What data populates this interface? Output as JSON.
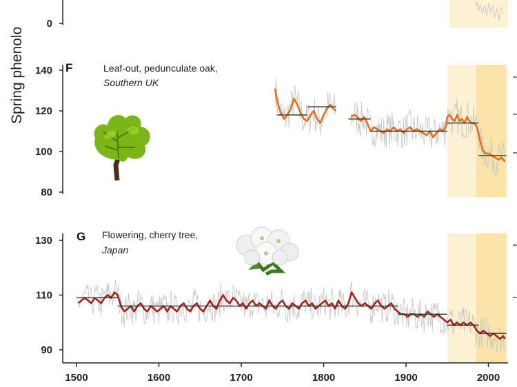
{
  "chart_data": [
    {
      "panel": "F",
      "type": "line",
      "annotation": "Leaf-out, pedunculate oak,",
      "annotation_italic": "Southern UK",
      "y_label_partial": "Spring phenolo",
      "yticks": [
        80,
        100,
        120,
        140
      ],
      "ylim": [
        78,
        144
      ],
      "xlim": [
        1490,
        2022
      ],
      "shaded_periods": [
        [
          1950,
          1985
        ],
        [
          1985,
          2022
        ]
      ],
      "series": [
        {
          "points": [
            [
              1741,
              131
            ],
            [
              1744,
              124
            ],
            [
              1748,
              119
            ],
            [
              1752,
              116
            ],
            [
              1756,
              118
            ],
            [
              1760,
              121
            ],
            [
              1764,
              126
            ],
            [
              1768,
              123
            ],
            [
              1772,
              119
            ],
            [
              1776,
              116
            ],
            [
              1780,
              115
            ],
            [
              1784,
              118
            ],
            [
              1788,
              120
            ],
            [
              1792,
              116
            ],
            [
              1796,
              114
            ],
            [
              1800,
              118
            ],
            [
              1804,
              121
            ],
            [
              1808,
              123
            ],
            [
              1812,
              121
            ],
            [
              1815,
              120
            ]
          ],
          "segments": [
            [
              1743,
              1780,
              118
            ],
            [
              1780,
              1815,
              122
            ]
          ]
        },
        {
          "points": [
            [
              1833,
              117
            ],
            [
              1837,
              118
            ],
            [
              1841,
              117
            ],
            [
              1845,
              115
            ],
            [
              1849,
              117
            ],
            [
              1853,
              114
            ],
            [
              1857,
              110
            ],
            [
              1861,
              112
            ],
            [
              1865,
              111
            ],
            [
              1869,
              110
            ],
            [
              1873,
              109
            ],
            [
              1877,
              111
            ],
            [
              1881,
              110
            ],
            [
              1885,
              112
            ],
            [
              1889,
              110
            ],
            [
              1893,
              111
            ],
            [
              1897,
              109
            ],
            [
              1901,
              111
            ],
            [
              1905,
              112
            ],
            [
              1909,
              110
            ],
            [
              1913,
              111
            ],
            [
              1917,
              110
            ],
            [
              1921,
              109
            ],
            [
              1925,
              108
            ],
            [
              1929,
              110
            ],
            [
              1933,
              107
            ],
            [
              1937,
              109
            ],
            [
              1941,
              111
            ],
            [
              1945,
              110
            ],
            [
              1948,
              112
            ],
            [
              1950,
              117
            ],
            [
              1953,
              118
            ],
            [
              1956,
              116
            ],
            [
              1959,
              115
            ],
            [
              1962,
              118
            ],
            [
              1965,
              115
            ],
            [
              1968,
              116
            ],
            [
              1971,
              114
            ],
            [
              1974,
              117
            ],
            [
              1977,
              115
            ],
            [
              1980,
              114
            ],
            [
              1983,
              114
            ],
            [
              1986,
              112
            ],
            [
              1988,
              109
            ],
            [
              1990,
              105
            ],
            [
              1993,
              101
            ],
            [
              1996,
              99
            ],
            [
              2000,
              99
            ],
            [
              2004,
              98
            ],
            [
              2008,
              97
            ],
            [
              2012,
              96
            ],
            [
              2016,
              97
            ],
            [
              2020,
              95
            ]
          ],
          "segments": [
            [
              1830,
              1857,
              116
            ],
            [
              1857,
              1950,
              110
            ],
            [
              1950,
              1988,
              114
            ],
            [
              1988,
              2022,
              98
            ]
          ]
        }
      ]
    },
    {
      "panel": "G",
      "type": "line",
      "annotation": "Flowering, cherry tree,",
      "annotation_italic": "Japan",
      "yticks": [
        90,
        110,
        130
      ],
      "ylim": [
        85,
        133
      ],
      "xticks": [
        1500,
        1600,
        1700,
        1800,
        1900,
        2000
      ],
      "xlim": [
        1490,
        2022
      ],
      "shaded_periods": [
        [
          1950,
          1985
        ],
        [
          1985,
          2022
        ]
      ],
      "series": [
        {
          "points": [
            [
              1502,
              107
            ],
            [
              1506,
              108
            ],
            [
              1510,
              109
            ],
            [
              1514,
              108
            ],
            [
              1518,
              107
            ],
            [
              1522,
              109
            ],
            [
              1526,
              108
            ],
            [
              1530,
              107
            ],
            [
              1534,
              109
            ],
            [
              1538,
              110
            ],
            [
              1542,
              109
            ],
            [
              1546,
              111
            ],
            [
              1550,
              110
            ],
            [
              1554,
              106
            ],
            [
              1558,
              104
            ],
            [
              1562,
              105
            ],
            [
              1566,
              106
            ],
            [
              1570,
              104
            ],
            [
              1574,
              106
            ],
            [
              1578,
              107
            ],
            [
              1582,
              105
            ],
            [
              1586,
              104
            ],
            [
              1590,
              106
            ],
            [
              1594,
              105
            ],
            [
              1598,
              104
            ],
            [
              1602,
              105
            ],
            [
              1606,
              106
            ],
            [
              1610,
              104
            ],
            [
              1614,
              106
            ],
            [
              1618,
              105
            ],
            [
              1622,
              104
            ],
            [
              1626,
              106
            ],
            [
              1630,
              107
            ],
            [
              1634,
              105
            ],
            [
              1638,
              104
            ],
            [
              1642,
              106
            ],
            [
              1646,
              107
            ],
            [
              1650,
              105
            ],
            [
              1654,
              104
            ],
            [
              1658,
              106
            ],
            [
              1662,
              108
            ],
            [
              1666,
              106
            ],
            [
              1670,
              105
            ],
            [
              1674,
              108
            ],
            [
              1678,
              110
            ],
            [
              1682,
              108
            ],
            [
              1686,
              107
            ],
            [
              1690,
              109
            ],
            [
              1694,
              108
            ],
            [
              1698,
              106
            ],
            [
              1702,
              107
            ],
            [
              1706,
              105
            ],
            [
              1710,
              107
            ],
            [
              1714,
              108
            ],
            [
              1718,
              106
            ],
            [
              1722,
              107
            ],
            [
              1726,
              106
            ],
            [
              1730,
              105
            ],
            [
              1734,
              108
            ],
            [
              1738,
              106
            ],
            [
              1742,
              105
            ],
            [
              1746,
              107
            ],
            [
              1750,
              108
            ],
            [
              1754,
              106
            ],
            [
              1758,
              105
            ],
            [
              1762,
              107
            ],
            [
              1766,
              106
            ],
            [
              1770,
              105
            ],
            [
              1774,
              107
            ],
            [
              1778,
              108
            ],
            [
              1782,
              106
            ],
            [
              1786,
              107
            ],
            [
              1790,
              105
            ],
            [
              1794,
              106
            ],
            [
              1798,
              107
            ],
            [
              1802,
              108
            ],
            [
              1806,
              106
            ],
            [
              1810,
              107
            ],
            [
              1814,
              105
            ],
            [
              1818,
              108
            ],
            [
              1822,
              106
            ],
            [
              1826,
              105
            ],
            [
              1830,
              107
            ],
            [
              1834,
              111
            ],
            [
              1838,
              109
            ],
            [
              1842,
              107
            ],
            [
              1846,
              106
            ],
            [
              1850,
              107
            ],
            [
              1854,
              106
            ],
            [
              1858,
              105
            ],
            [
              1862,
              107
            ],
            [
              1866,
              108
            ],
            [
              1870,
              106
            ],
            [
              1874,
              105
            ],
            [
              1878,
              106
            ],
            [
              1882,
              107
            ],
            [
              1886,
              105
            ],
            [
              1890,
              104
            ],
            [
              1894,
              103
            ],
            [
              1898,
              103
            ],
            [
              1902,
              102
            ],
            [
              1906,
              103
            ],
            [
              1910,
              103
            ],
            [
              1914,
              102
            ],
            [
              1918,
              103
            ],
            [
              1922,
              102
            ],
            [
              1926,
              104
            ],
            [
              1930,
              103
            ],
            [
              1934,
              102
            ],
            [
              1938,
              103
            ],
            [
              1942,
              102
            ],
            [
              1946,
              101
            ],
            [
              1950,
              100
            ],
            [
              1954,
              101
            ],
            [
              1958,
              99
            ],
            [
              1962,
              100
            ],
            [
              1966,
              99
            ],
            [
              1970,
              100
            ],
            [
              1974,
              99
            ],
            [
              1978,
              100
            ],
            [
              1982,
              99
            ],
            [
              1986,
              97
            ],
            [
              1990,
              96
            ],
            [
              1994,
              97
            ],
            [
              1998,
              96
            ],
            [
              2002,
              95
            ],
            [
              2006,
              96
            ],
            [
              2010,
              95
            ],
            [
              2014,
              94
            ],
            [
              2018,
              95
            ],
            [
              2020,
              94
            ]
          ],
          "segments": [
            [
              1500,
              1550,
              109
            ],
            [
              1550,
              1890,
              106
            ],
            [
              1890,
              1950,
              103
            ],
            [
              1950,
              1988,
              99
            ],
            [
              1988,
              2022,
              96
            ]
          ]
        }
      ]
    }
  ],
  "colors": {
    "oak_line": "#e07020",
    "cherry_line": "#a3241b",
    "raw_line": "#c8c8c8",
    "mean_line": "#333333",
    "shade_light": "#fdf1d4",
    "shade_dark": "#fbe3a9",
    "oak_leaf": "#7cb518",
    "blossom": "#f2f2f2"
  },
  "icons": {
    "oak": "oak-leaf-icon",
    "cherry": "cherry-blossom-icon"
  }
}
